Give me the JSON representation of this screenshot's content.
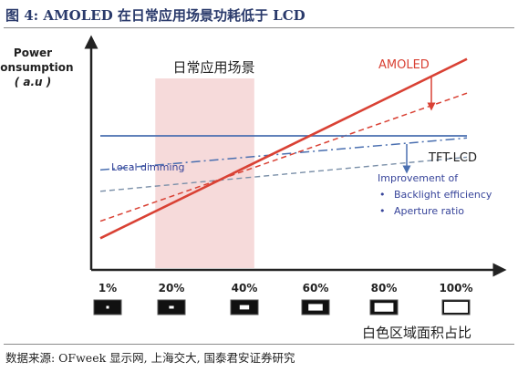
{
  "figure_title": "图 4: AMOLED 在日常应用场景功耗低于 LCD",
  "source_note": "数据来源: OFweek 显示网, 上海交大, 国泰君安证券研究",
  "colors": {
    "amoled": "#d94134",
    "lcd": "#4a6fb0",
    "region": "#f6dada",
    "title": "#2a3a6b",
    "annotation": "#37449a"
  },
  "chart_data": {
    "type": "line",
    "title": "",
    "ylabel_lines": [
      "Power",
      "Consumption",
      "( a.u )"
    ],
    "xlabel": "白色区域面积占比",
    "x_ticks": [
      "1%",
      "20%",
      "40%",
      "60%",
      "80%",
      "100%"
    ],
    "xlim": [
      0,
      100
    ],
    "ylim": [
      0,
      100
    ],
    "grid": false,
    "shaded_region": {
      "label": "日常应用场景",
      "x_range": [
        15,
        42
      ]
    },
    "series": [
      {
        "name": "AMOLED",
        "style": "solid",
        "color": "#d94134",
        "x": [
          0,
          100
        ],
        "y": [
          8,
          92
        ]
      },
      {
        "name": "",
        "style": "dashed",
        "color": "#d94134",
        "x": [
          0,
          100
        ],
        "y": [
          16,
          76
        ]
      },
      {
        "name": "TFT-LCD",
        "style": "solid",
        "color": "#4a6fb0",
        "x": [
          0,
          100
        ],
        "y": [
          56,
          56
        ]
      },
      {
        "name": "",
        "style": "dashdot",
        "color": "#4a6fb0",
        "x": [
          0,
          100
        ],
        "y": [
          40,
          55
        ]
      },
      {
        "name": "",
        "style": "dashed",
        "color": "#7a8fa8",
        "x": [
          0,
          100
        ],
        "y": [
          30,
          46
        ]
      }
    ],
    "annotations": {
      "local_dimming": "Local dimming",
      "improvement_title": "Improvement of",
      "improvement_items": [
        "Backlight efficiency",
        "Aperture ratio"
      ]
    }
  }
}
